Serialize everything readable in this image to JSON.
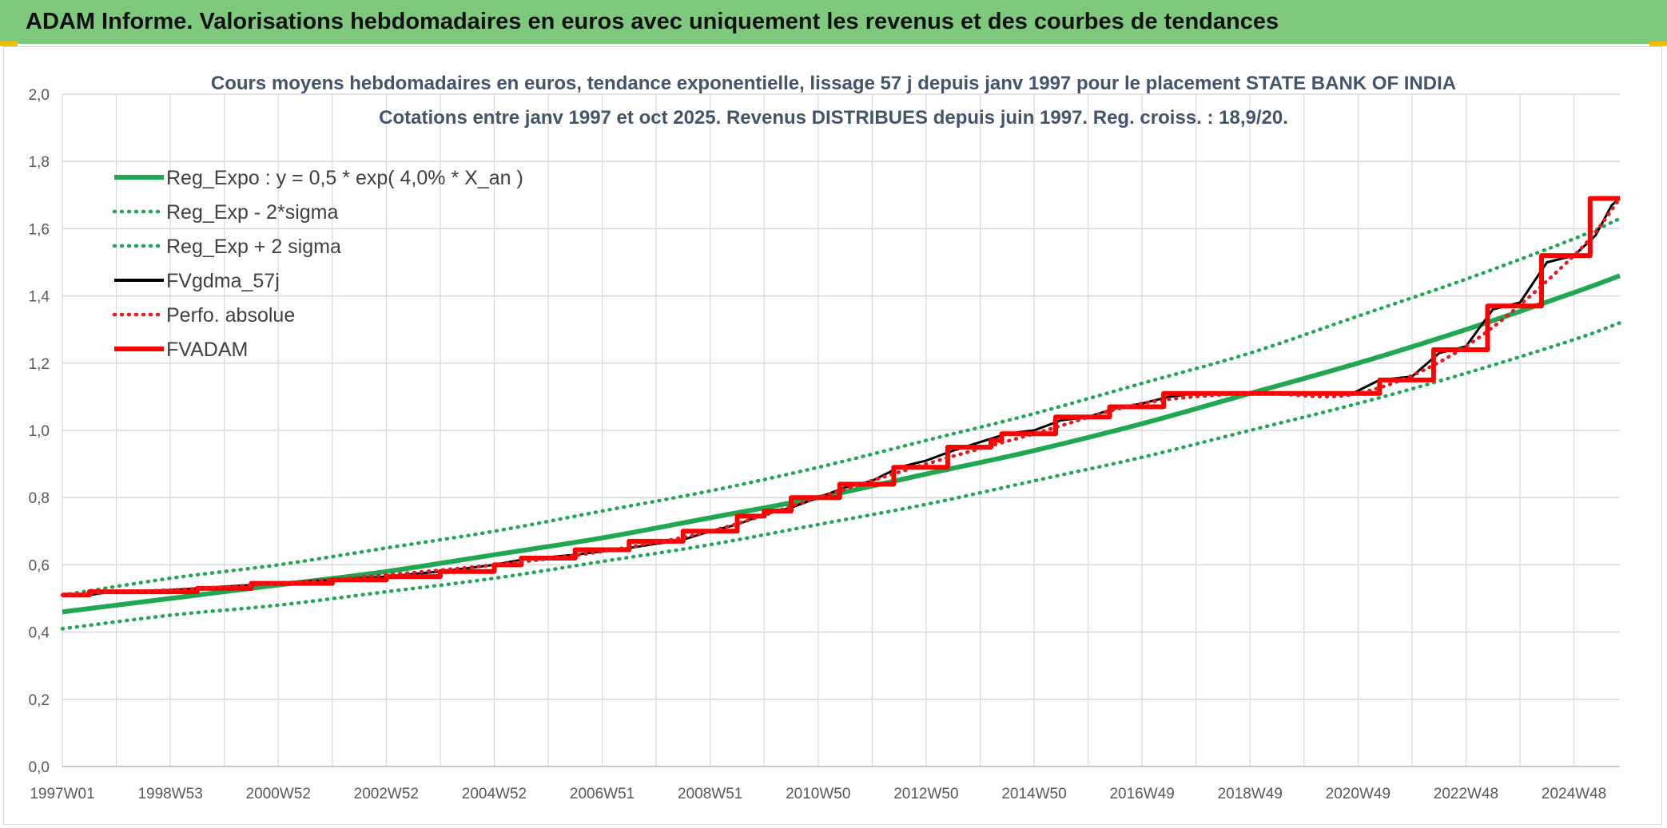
{
  "header": {
    "title": "ADAM Informe. Valorisations hebdomadaires en euros avec uniquement les revenus et des courbes de tendances"
  },
  "chart_data": {
    "type": "line",
    "title": "Cours moyens hebdomadaires en euros, tendance exponentielle, lissage 57 j depuis janv 1997 pour le placement STATE BANK OF INDIA",
    "subtitle": "Cotations entre janv 1997 et oct 2025. Revenus DISTRIBUES depuis juin 1997. Reg. croiss. : 18,9/20.",
    "x_unit": "year",
    "xlim": [
      1997.0,
      2025.85
    ],
    "ylim": [
      0,
      2.0
    ],
    "y_ticks": [
      "0,0",
      "0,2",
      "0,4",
      "0,6",
      "0,8",
      "1,0",
      "1,2",
      "1,4",
      "1,6",
      "1,8",
      "2,0"
    ],
    "x_ticks": [
      {
        "label": "1997W01",
        "x": 1997.0
      },
      {
        "label": "1998W53",
        "x": 1999.0
      },
      {
        "label": "2000W52",
        "x": 2001.0
      },
      {
        "label": "2002W52",
        "x": 2003.0
      },
      {
        "label": "2004W52",
        "x": 2005.0
      },
      {
        "label": "2006W51",
        "x": 2007.0
      },
      {
        "label": "2008W51",
        "x": 2009.0
      },
      {
        "label": "2010W50",
        "x": 2011.0
      },
      {
        "label": "2012W50",
        "x": 2013.0
      },
      {
        "label": "2014W50",
        "x": 2015.0
      },
      {
        "label": "2016W49",
        "x": 2017.0
      },
      {
        "label": "2018W49",
        "x": 2019.0
      },
      {
        "label": "2020W49",
        "x": 2021.0
      },
      {
        "label": "2022W48",
        "x": 2023.0
      },
      {
        "label": "2024W48",
        "x": 2025.0
      }
    ],
    "legend_position": "top-left",
    "grid": true,
    "series": [
      {
        "name": "Reg_Expo : y = 0,5 * exp( 4,0% *  X_an )",
        "color": "#1fa84f",
        "style": "solid",
        "x": [
          1997.0,
          1999.0,
          2001.0,
          2003.0,
          2005.0,
          2007.0,
          2009.0,
          2011.0,
          2013.0,
          2015.0,
          2017.0,
          2019.0,
          2021.0,
          2023.0,
          2025.0,
          2025.85
        ],
        "y": [
          0.46,
          0.5,
          0.54,
          0.58,
          0.63,
          0.68,
          0.74,
          0.8,
          0.87,
          0.94,
          1.02,
          1.11,
          1.2,
          1.3,
          1.41,
          1.46
        ]
      },
      {
        "name": "Reg_Exp - 2*sigma",
        "color": "#1fa84f",
        "style": "dotted",
        "x": [
          1997.0,
          1999.0,
          2001.0,
          2003.0,
          2005.0,
          2007.0,
          2009.0,
          2011.0,
          2013.0,
          2015.0,
          2017.0,
          2019.0,
          2021.0,
          2023.0,
          2025.0,
          2025.85
        ],
        "y": [
          0.41,
          0.45,
          0.48,
          0.52,
          0.56,
          0.61,
          0.66,
          0.72,
          0.78,
          0.85,
          0.92,
          1.0,
          1.08,
          1.17,
          1.27,
          1.32
        ]
      },
      {
        "name": "Reg_Exp + 2 sigma",
        "color": "#1fa84f",
        "style": "dotted",
        "x": [
          1997.0,
          1999.0,
          2001.0,
          2003.0,
          2005.0,
          2007.0,
          2009.0,
          2011.0,
          2013.0,
          2015.0,
          2017.0,
          2019.0,
          2021.0,
          2023.0,
          2025.0,
          2025.85
        ],
        "y": [
          0.51,
          0.56,
          0.6,
          0.65,
          0.7,
          0.76,
          0.82,
          0.89,
          0.97,
          1.05,
          1.14,
          1.23,
          1.34,
          1.45,
          1.57,
          1.63
        ]
      },
      {
        "name": "FVgdma_57j",
        "color": "#000000",
        "style": "solid",
        "x": [
          1997.0,
          1997.5,
          1997.9,
          1999.0,
          2000.0,
          2001.0,
          2002.0,
          2003.0,
          2004.0,
          2004.5,
          2005.0,
          2005.5,
          2006.5,
          2007.5,
          2008.5,
          2009.0,
          2009.5,
          2010.0,
          2010.5,
          2011.0,
          2011.5,
          2012.0,
          2012.5,
          2013.0,
          2013.5,
          2014.0,
          2014.5,
          2015.0,
          2015.5,
          2016.0,
          2016.5,
          2017.0,
          2017.5,
          2018.0,
          2019.0,
          2020.0,
          2020.9,
          2021.4,
          2022.0,
          2022.5,
          2023.0,
          2023.5,
          2024.0,
          2024.5,
          2025.0,
          2025.4,
          2025.7,
          2025.85
        ],
        "y": [
          0.51,
          0.51,
          0.52,
          0.525,
          0.535,
          0.545,
          0.555,
          0.565,
          0.58,
          0.59,
          0.6,
          0.615,
          0.63,
          0.65,
          0.675,
          0.7,
          0.72,
          0.75,
          0.77,
          0.8,
          0.83,
          0.85,
          0.89,
          0.91,
          0.94,
          0.965,
          0.99,
          1.0,
          1.03,
          1.04,
          1.065,
          1.08,
          1.1,
          1.11,
          1.11,
          1.11,
          1.11,
          1.15,
          1.16,
          1.23,
          1.25,
          1.36,
          1.38,
          1.5,
          1.52,
          1.58,
          1.67,
          1.69
        ]
      },
      {
        "name": "Perfo. absolue",
        "color": "#e41a1c",
        "style": "dotted",
        "x": [
          1997.0,
          1998.0,
          1999.0,
          2001.0,
          2003.0,
          2005.0,
          2007.0,
          2009.0,
          2011.0,
          2013.0,
          2015.0,
          2017.0,
          2019.0,
          2021.0,
          2023.0,
          2025.0,
          2025.85
        ],
        "y": [
          0.51,
          0.52,
          0.525,
          0.545,
          0.57,
          0.6,
          0.64,
          0.7,
          0.8,
          0.9,
          0.99,
          1.08,
          1.11,
          1.11,
          1.25,
          1.52,
          1.69
        ]
      },
      {
        "name": "FVADAM",
        "color": "#ff0000",
        "style": "solid",
        "steps": [
          {
            "x": 1997.0,
            "y": 0.51
          },
          {
            "x": 1997.5,
            "y": 0.51
          },
          {
            "x": 1997.5,
            "y": 0.52
          },
          {
            "x": 1999.5,
            "y": 0.52
          },
          {
            "x": 1999.5,
            "y": 0.53
          },
          {
            "x": 2000.5,
            "y": 0.53
          },
          {
            "x": 2000.5,
            "y": 0.545
          },
          {
            "x": 2002.0,
            "y": 0.545
          },
          {
            "x": 2002.0,
            "y": 0.555
          },
          {
            "x": 2003.0,
            "y": 0.555
          },
          {
            "x": 2003.0,
            "y": 0.565
          },
          {
            "x": 2004.0,
            "y": 0.565
          },
          {
            "x": 2004.0,
            "y": 0.58
          },
          {
            "x": 2005.0,
            "y": 0.58
          },
          {
            "x": 2005.0,
            "y": 0.6
          },
          {
            "x": 2005.5,
            "y": 0.6
          },
          {
            "x": 2005.5,
            "y": 0.62
          },
          {
            "x": 2006.5,
            "y": 0.62
          },
          {
            "x": 2006.5,
            "y": 0.645
          },
          {
            "x": 2007.5,
            "y": 0.645
          },
          {
            "x": 2007.5,
            "y": 0.67
          },
          {
            "x": 2008.5,
            "y": 0.67
          },
          {
            "x": 2008.5,
            "y": 0.7
          },
          {
            "x": 2009.5,
            "y": 0.7
          },
          {
            "x": 2009.5,
            "y": 0.745
          },
          {
            "x": 2010.0,
            "y": 0.745
          },
          {
            "x": 2010.0,
            "y": 0.76
          },
          {
            "x": 2010.5,
            "y": 0.76
          },
          {
            "x": 2010.5,
            "y": 0.8
          },
          {
            "x": 2011.4,
            "y": 0.8
          },
          {
            "x": 2011.4,
            "y": 0.84
          },
          {
            "x": 2012.4,
            "y": 0.84
          },
          {
            "x": 2012.4,
            "y": 0.89
          },
          {
            "x": 2013.4,
            "y": 0.89
          },
          {
            "x": 2013.4,
            "y": 0.95
          },
          {
            "x": 2014.2,
            "y": 0.95
          },
          {
            "x": 2014.2,
            "y": 0.97
          },
          {
            "x": 2014.4,
            "y": 0.97
          },
          {
            "x": 2014.4,
            "y": 0.99
          },
          {
            "x": 2015.4,
            "y": 0.99
          },
          {
            "x": 2015.4,
            "y": 1.04
          },
          {
            "x": 2016.4,
            "y": 1.04
          },
          {
            "x": 2016.4,
            "y": 1.07
          },
          {
            "x": 2017.4,
            "y": 1.07
          },
          {
            "x": 2017.4,
            "y": 1.11
          },
          {
            "x": 2021.4,
            "y": 1.11
          },
          {
            "x": 2021.4,
            "y": 1.15
          },
          {
            "x": 2022.4,
            "y": 1.15
          },
          {
            "x": 2022.4,
            "y": 1.24
          },
          {
            "x": 2023.4,
            "y": 1.24
          },
          {
            "x": 2023.4,
            "y": 1.37
          },
          {
            "x": 2024.4,
            "y": 1.37
          },
          {
            "x": 2024.4,
            "y": 1.52
          },
          {
            "x": 2025.3,
            "y": 1.52
          },
          {
            "x": 2025.3,
            "y": 1.69
          },
          {
            "x": 2025.85,
            "y": 1.69
          }
        ]
      }
    ]
  }
}
